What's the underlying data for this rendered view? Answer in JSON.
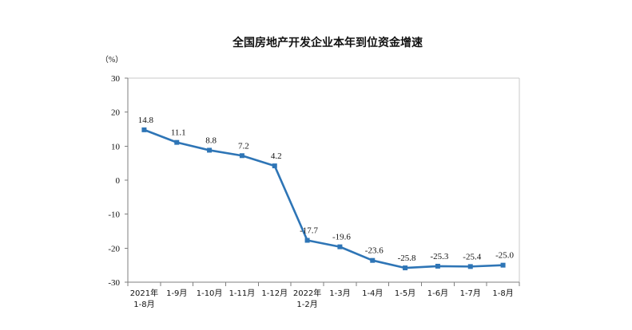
{
  "chart_data": {
    "type": "line",
    "title": "全国房地产开发企业本年到位资金增速",
    "unit": "（%）",
    "categories": [
      [
        "2021年",
        "1-8月"
      ],
      [
        "1-9月"
      ],
      [
        "1-10月"
      ],
      [
        "1-11月"
      ],
      [
        "1-12月"
      ],
      [
        "2022年",
        "1-2月"
      ],
      [
        "1-3月"
      ],
      [
        "1-4月"
      ],
      [
        "1-5月"
      ],
      [
        "1-6月"
      ],
      [
        "1-7月"
      ],
      [
        "1-8月"
      ]
    ],
    "values": [
      14.8,
      11.1,
      8.8,
      7.2,
      4.2,
      -17.7,
      -19.6,
      -23.6,
      -25.8,
      -25.3,
      -25.4,
      -25.0
    ],
    "data_labels": [
      "14.8",
      "11.1",
      "8.8",
      "7.2",
      "4.2",
      "-17.7",
      "-19.6",
      "-23.6",
      "-25.8",
      "-25.3",
      "-25.4",
      "-25.0"
    ],
    "y_ticks": [
      30,
      20,
      10,
      0,
      -10,
      -20,
      -30
    ],
    "y_tick_labels": [
      "30",
      "20",
      "10",
      "0",
      "-10",
      "-20",
      "-30"
    ],
    "ylim": [
      -30,
      30
    ],
    "grid": false,
    "legend": "none",
    "line_color": "#2E75B6"
  }
}
